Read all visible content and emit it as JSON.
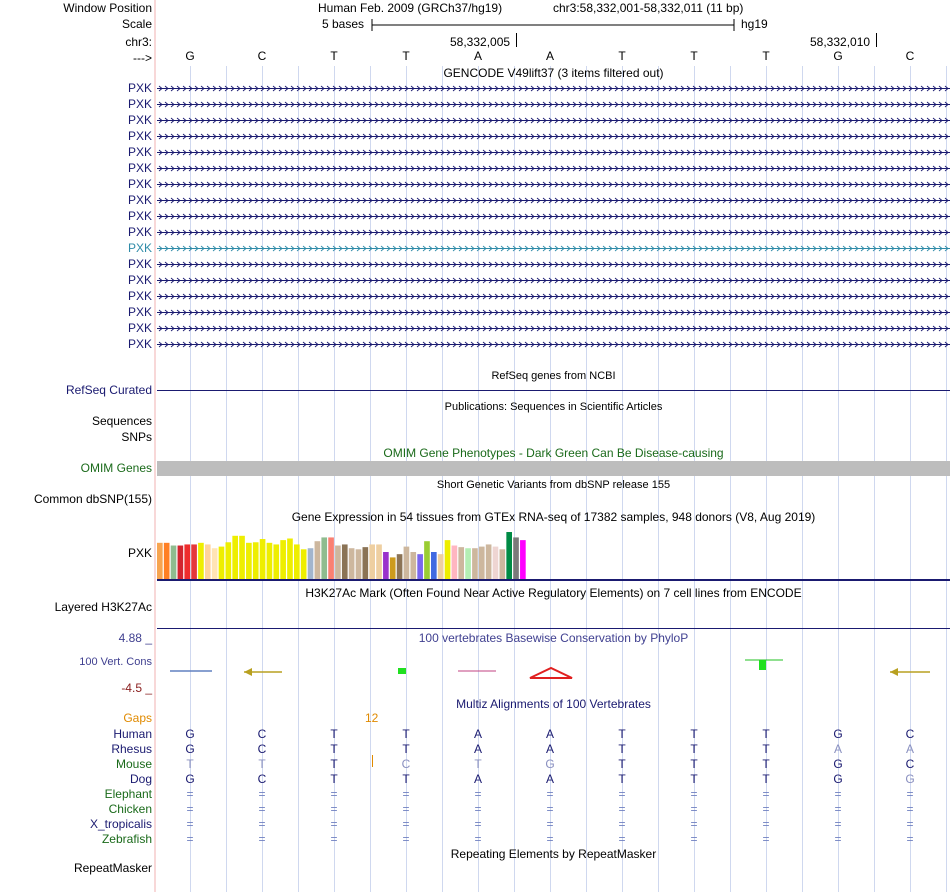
{
  "labels": {
    "window_position": "Window Position",
    "scale": "Scale",
    "chr": "chr3:",
    "arrow": "--->",
    "refseq": "RefSeq Curated",
    "sequences": "Sequences",
    "snps": "SNPs",
    "omim": "OMIM Genes",
    "common_dbsnp": "Common dbSNP(155)",
    "gtex_gene": "PXK",
    "h3k27ac": "Layered H3K27Ac",
    "cons_max": "4.88 _",
    "cons_label": "100 Vert. Cons",
    "cons_min": "-4.5 _",
    "gaps": "Gaps",
    "repeatmasker": "RepeatMasker"
  },
  "header": {
    "assembly": "Human Feb. 2009 (GRCh37/hg19)",
    "position": "chr3:58,332,001-58,332,011 (11 bp)",
    "scale_text": "5 bases",
    "scale_db": "hg19",
    "coord1": "58,332,005",
    "coord2": "58,332,010"
  },
  "dna": [
    "G",
    "C",
    "T",
    "T",
    "A",
    "A",
    "T",
    "T",
    "T",
    "G",
    "C"
  ],
  "tracks": {
    "gencode_title": "GENCODE V49lift37 (3 items filtered out)",
    "gencode_items": [
      "PXK",
      "PXK",
      "PXK",
      "PXK",
      "PXK",
      "PXK",
      "PXK",
      "PXK",
      "PXK",
      "PXK",
      "PXK",
      "PXK",
      "PXK",
      "PXK",
      "PXK",
      "PXK",
      "PXK"
    ],
    "gencode_highlight_index": 10,
    "refseq_title": "RefSeq genes from NCBI",
    "publications_title": "Publications: Sequences in Scientific Articles",
    "omim_title": "OMIM Gene Phenotypes - Dark Green Can Be Disease-causing",
    "dbsnp_title": "Short Genetic Variants from dbSNP release 155",
    "gtex_title": "Gene Expression in 54 tissues from GTEx RNA-seq of 17382 samples, 948 donors (V8, Aug 2019)",
    "h3k27ac_title": "H3K27Ac Mark (Often Found Near Active Regulatory Elements) on 7 cell lines from ENCODE",
    "cons_title": "100 vertebrates Basewise Conservation by PhyloP",
    "multiz_title": "Multiz Alignments of 100 Vertebrates",
    "gap_count": "12",
    "repeat_title": "Repeating Elements by RepeatMasker"
  },
  "gtex_tissues": [
    {
      "level": 0.67,
      "color": "#f7a450"
    },
    {
      "level": 0.67,
      "color": "#ff7f24"
    },
    {
      "level": 0.62,
      "color": "#8fbc8f"
    },
    {
      "level": 0.62,
      "color": "#d2242e"
    },
    {
      "level": 0.64,
      "color": "#ee2c2c"
    },
    {
      "level": 0.64,
      "color": "#e5383b"
    },
    {
      "level": 0.67,
      "color": "#eeee00"
    },
    {
      "level": 0.64,
      "color": "#ffd39b"
    },
    {
      "level": 0.57,
      "color": "#ffe4b5"
    },
    {
      "level": 0.6,
      "color": "#eeee00"
    },
    {
      "level": 0.68,
      "color": "#eeee00"
    },
    {
      "level": 0.8,
      "color": "#eeee00"
    },
    {
      "level": 0.8,
      "color": "#eeee00"
    },
    {
      "level": 0.67,
      "color": "#eeee00"
    },
    {
      "level": 0.68,
      "color": "#eeee00"
    },
    {
      "level": 0.74,
      "color": "#eeee00"
    },
    {
      "level": 0.67,
      "color": "#eeee00"
    },
    {
      "level": 0.64,
      "color": "#eeee00"
    },
    {
      "level": 0.72,
      "color": "#eeee00"
    },
    {
      "level": 0.75,
      "color": "#eeee00"
    },
    {
      "level": 0.64,
      "color": "#eeee00"
    },
    {
      "level": 0.55,
      "color": "#eeee00"
    },
    {
      "level": 0.57,
      "color": "#a2b5cd"
    },
    {
      "level": 0.7,
      "color": "#cdb79e"
    },
    {
      "level": 0.77,
      "color": "#8fbc8f"
    },
    {
      "level": 0.77,
      "color": "#fa8072"
    },
    {
      "level": 0.62,
      "color": "#cdb79e"
    },
    {
      "level": 0.64,
      "color": "#8b7355"
    },
    {
      "level": 0.57,
      "color": "#cdb79e"
    },
    {
      "level": 0.55,
      "color": "#cdb79e"
    },
    {
      "level": 0.59,
      "color": "#8b7355"
    },
    {
      "level": 0.64,
      "color": "#eecfa1"
    },
    {
      "level": 0.64,
      "color": "#eecfa1"
    },
    {
      "level": 0.5,
      "color": "#9932cc"
    },
    {
      "level": 0.4,
      "color": "#cd9b1d"
    },
    {
      "level": 0.46,
      "color": "#8b7355"
    },
    {
      "level": 0.6,
      "color": "#cdb79e"
    },
    {
      "level": 0.5,
      "color": "#cdb79e"
    },
    {
      "level": 0.46,
      "color": "#7a67ee"
    },
    {
      "level": 0.7,
      "color": "#9acd32"
    },
    {
      "level": 0.5,
      "color": "#4169e1"
    },
    {
      "level": 0.46,
      "color": "#eecfa1"
    },
    {
      "level": 0.72,
      "color": "#eeee00"
    },
    {
      "level": 0.62,
      "color": "#ffb6c1"
    },
    {
      "level": 0.59,
      "color": "#cdb79e"
    },
    {
      "level": 0.57,
      "color": "#b4eeb4"
    },
    {
      "level": 0.57,
      "color": "#cdb79e"
    },
    {
      "level": 0.6,
      "color": "#cdb79e"
    },
    {
      "level": 0.64,
      "color": "#cdb79e"
    },
    {
      "level": 0.6,
      "color": "#eed5d2"
    },
    {
      "level": 0.55,
      "color": "#cdb79e"
    },
    {
      "level": 0.87,
      "color": "#008b45"
    },
    {
      "level": 0.77,
      "color": "#7a7a7a"
    },
    {
      "level": 0.72,
      "color": "#ff00ff"
    }
  ],
  "multiz": {
    "species": [
      {
        "name": "Human",
        "color": "#1a1a70",
        "bases": [
          "G",
          "C",
          "T",
          "T",
          "A",
          "A",
          "T",
          "T",
          "T",
          "G",
          "C"
        ]
      },
      {
        "name": "Rhesus",
        "color": "#1a1a70",
        "bases": [
          "G",
          "C",
          "T",
          "T",
          "A",
          "A",
          "T",
          "T",
          "T",
          "A",
          "A"
        ]
      },
      {
        "name": "Mouse",
        "color": "#1a6a1a",
        "bases": [
          "T",
          "T",
          "T",
          "C",
          "T",
          "G",
          "T",
          "T",
          "T",
          "G",
          "C"
        ]
      },
      {
        "name": "Dog",
        "color": "#1a1a70",
        "bases": [
          "G",
          "C",
          "T",
          "T",
          "A",
          "A",
          "T",
          "T",
          "T",
          "G",
          "G"
        ]
      },
      {
        "name": "Elephant",
        "color": "#1a6a1a",
        "bases": [
          "=",
          "=",
          "=",
          "=",
          "=",
          "=",
          "=",
          "=",
          "=",
          "=",
          "="
        ]
      },
      {
        "name": "Chicken",
        "color": "#1a6a1a",
        "bases": [
          "=",
          "=",
          "=",
          "=",
          "=",
          "=",
          "=",
          "=",
          "=",
          "=",
          "="
        ]
      },
      {
        "name": "X_tropicalis",
        "color": "#1a1a70",
        "bases": [
          "=",
          "=",
          "=",
          "=",
          "=",
          "=",
          "=",
          "=",
          "=",
          "=",
          "="
        ]
      },
      {
        "name": "Zebrafish",
        "color": "#1a6a1a",
        "bases": [
          "=",
          "=",
          "=",
          "=",
          "=",
          "=",
          "=",
          "=",
          "=",
          "=",
          "="
        ]
      }
    ]
  },
  "colors": {
    "navy": "#1a1a70",
    "green": "#1a6a1a",
    "gaps": "#e08a00",
    "cons_min": "#8b2020",
    "cons_title": "#404090",
    "teal": "#2f8ba8",
    "omim_bar": "#bdbdbd",
    "grid": "#cfd8ef",
    "left_border": "#f0b0b0"
  }
}
